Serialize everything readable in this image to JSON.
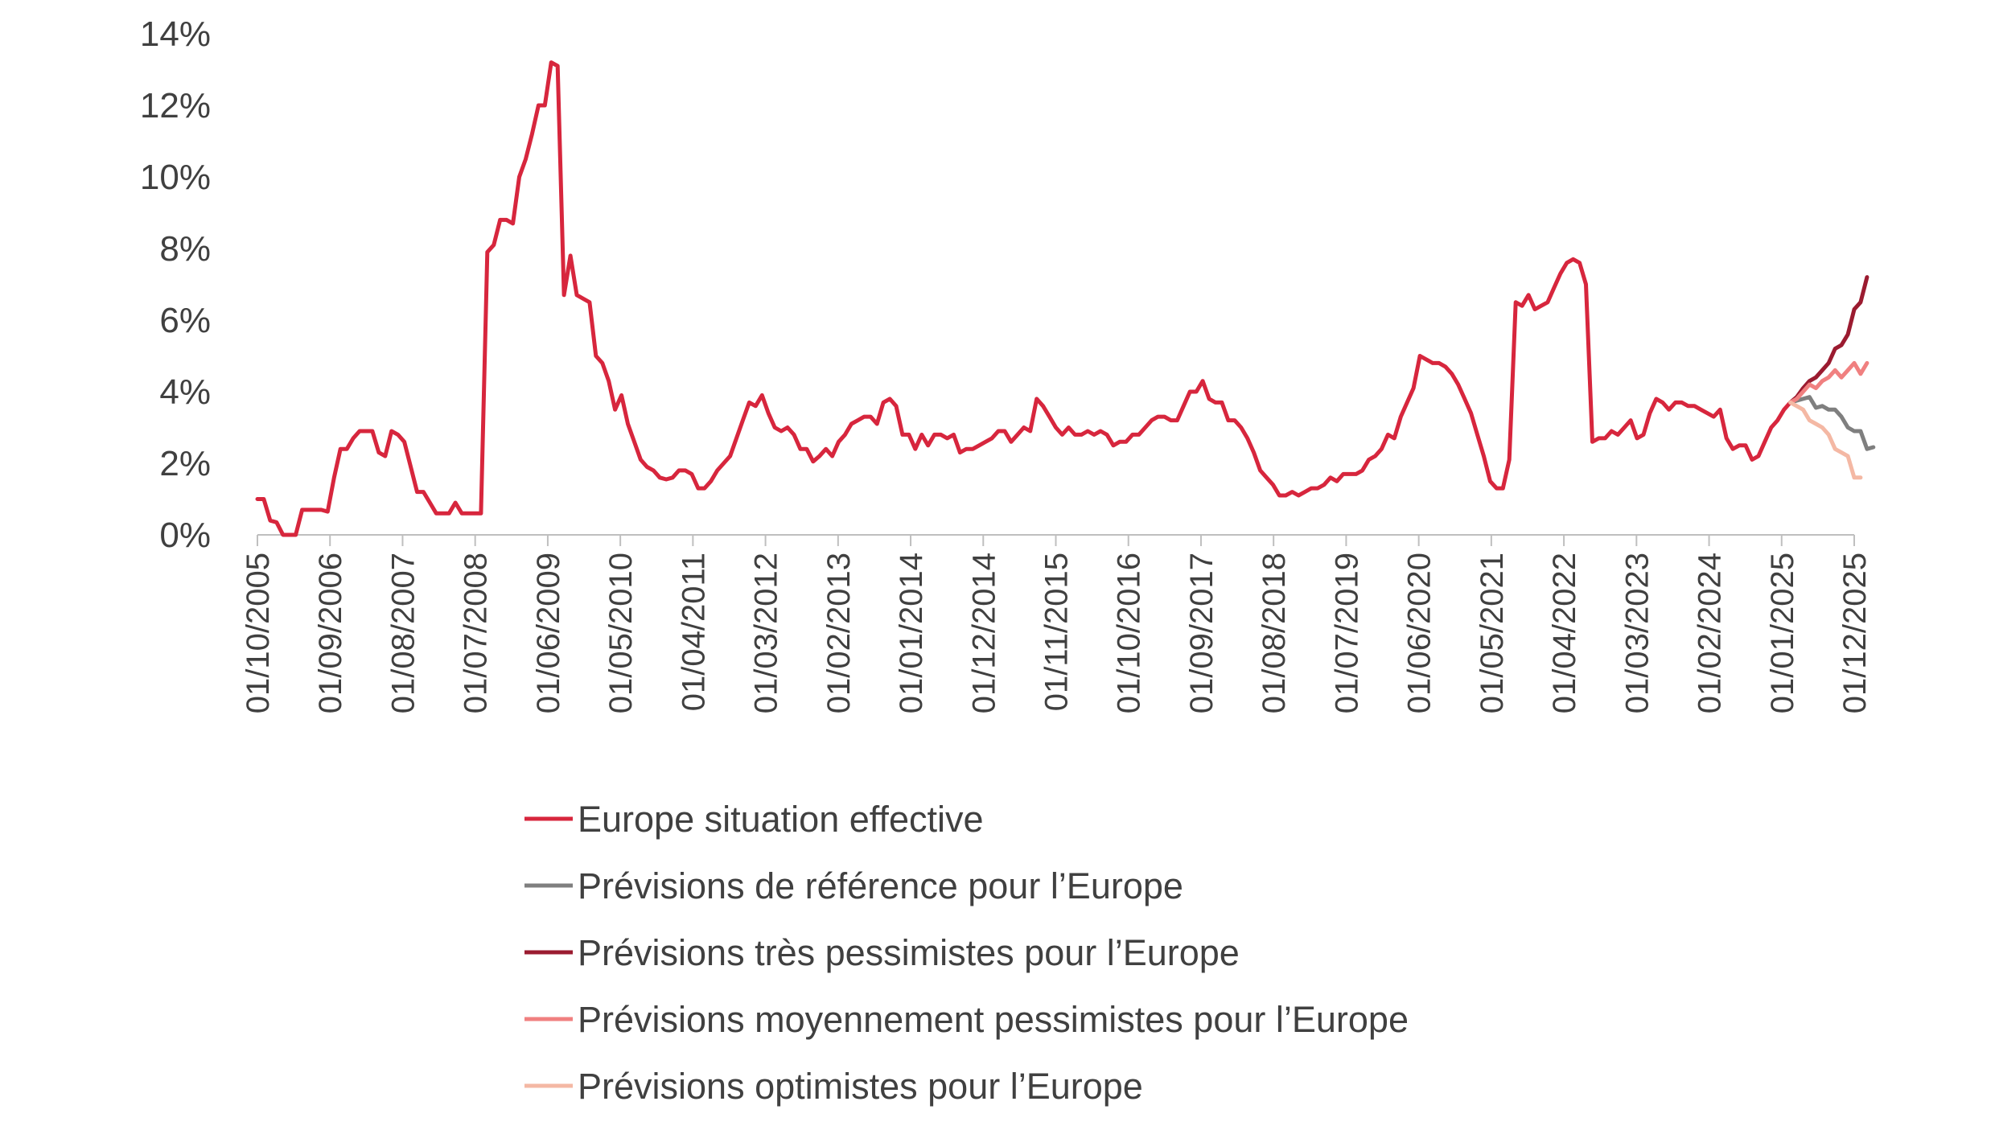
{
  "chart_data": {
    "type": "line",
    "title": "",
    "xlabel": "",
    "ylabel": "",
    "ylim": [
      0,
      14
    ],
    "y_ticks": [
      "0%",
      "2%",
      "4%",
      "6%",
      "8%",
      "10%",
      "12%",
      "14%"
    ],
    "x_ticks": [
      "01/10/2005",
      "01/09/2006",
      "01/08/2007",
      "01/07/2008",
      "01/06/2009",
      "01/05/2010",
      "01/04/2011",
      "01/03/2012",
      "01/02/2013",
      "01/01/2014",
      "01/12/2014",
      "01/11/2015",
      "01/10/2016",
      "01/09/2017",
      "01/08/2018",
      "01/07/2019",
      "01/06/2020",
      "01/05/2021",
      "01/04/2022",
      "01/03/2023",
      "01/02/2024",
      "01/01/2025",
      "01/12/2025"
    ],
    "x_range": [
      0,
      250
    ],
    "grid": false,
    "legend_position": "bottom",
    "series": [
      {
        "name": "Europe situation effective",
        "color": "#D7263D",
        "points": [
          [
            0,
            1.0
          ],
          [
            1,
            1.0
          ],
          [
            2,
            0.4
          ],
          [
            3,
            0.35
          ],
          [
            4,
            0.0
          ],
          [
            5,
            0.0
          ],
          [
            6,
            0.0
          ],
          [
            7,
            0.7
          ],
          [
            8,
            0.7
          ],
          [
            9,
            0.7
          ],
          [
            10,
            0.7
          ],
          [
            11,
            0.65
          ],
          [
            12,
            1.6
          ],
          [
            13,
            2.4
          ],
          [
            14,
            2.4
          ],
          [
            15,
            2.7
          ],
          [
            16,
            2.9
          ],
          [
            17,
            2.9
          ],
          [
            18,
            2.9
          ],
          [
            19,
            2.3
          ],
          [
            20,
            2.2
          ],
          [
            21,
            2.9
          ],
          [
            22,
            2.8
          ],
          [
            23,
            2.6
          ],
          [
            24,
            1.9
          ],
          [
            25,
            1.2
          ],
          [
            26,
            1.2
          ],
          [
            27,
            0.9
          ],
          [
            28,
            0.6
          ],
          [
            29,
            0.6
          ],
          [
            30,
            0.6
          ],
          [
            31,
            0.9
          ],
          [
            32,
            0.6
          ],
          [
            33,
            0.6
          ],
          [
            34,
            0.6
          ],
          [
            35,
            0.6
          ],
          [
            36,
            7.9
          ],
          [
            37,
            8.1
          ],
          [
            38,
            8.8
          ],
          [
            39,
            8.8
          ],
          [
            40,
            8.7
          ],
          [
            41,
            10.0
          ],
          [
            42,
            10.5
          ],
          [
            43,
            11.2
          ],
          [
            44,
            12.0
          ],
          [
            45,
            12.0
          ],
          [
            46,
            13.2
          ],
          [
            47,
            13.1
          ],
          [
            48,
            6.7
          ],
          [
            49,
            7.8
          ],
          [
            50,
            6.7
          ],
          [
            51,
            6.6
          ],
          [
            52,
            6.5
          ],
          [
            53,
            5.0
          ],
          [
            54,
            4.8
          ],
          [
            55,
            4.3
          ],
          [
            56,
            3.5
          ],
          [
            57,
            3.9
          ],
          [
            58,
            3.1
          ],
          [
            59,
            2.6
          ],
          [
            60,
            2.1
          ],
          [
            61,
            1.9
          ],
          [
            62,
            1.8
          ],
          [
            63,
            1.6
          ],
          [
            64,
            1.55
          ],
          [
            65,
            1.6
          ],
          [
            66,
            1.8
          ],
          [
            67,
            1.8
          ],
          [
            68,
            1.7
          ],
          [
            69,
            1.3
          ],
          [
            70,
            1.3
          ],
          [
            71,
            1.5
          ],
          [
            72,
            1.8
          ],
          [
            73,
            2.0
          ],
          [
            74,
            2.2
          ],
          [
            75,
            2.7
          ],
          [
            76,
            3.2
          ],
          [
            77,
            3.7
          ],
          [
            78,
            3.6
          ],
          [
            79,
            3.9
          ],
          [
            80,
            3.4
          ],
          [
            81,
            3.0
          ],
          [
            82,
            2.9
          ],
          [
            83,
            3.0
          ],
          [
            84,
            2.8
          ],
          [
            85,
            2.4
          ],
          [
            86,
            2.4
          ],
          [
            87,
            2.05
          ],
          [
            88,
            2.2
          ],
          [
            89,
            2.4
          ],
          [
            90,
            2.2
          ],
          [
            91,
            2.6
          ],
          [
            92,
            2.8
          ],
          [
            93,
            3.1
          ],
          [
            94,
            3.2
          ],
          [
            95,
            3.3
          ],
          [
            96,
            3.3
          ],
          [
            97,
            3.1
          ],
          [
            98,
            3.7
          ],
          [
            99,
            3.8
          ],
          [
            100,
            3.6
          ],
          [
            101,
            2.8
          ],
          [
            102,
            2.8
          ],
          [
            103,
            2.4
          ],
          [
            104,
            2.8
          ],
          [
            105,
            2.5
          ],
          [
            106,
            2.8
          ],
          [
            107,
            2.8
          ],
          [
            108,
            2.7
          ],
          [
            109,
            2.8
          ],
          [
            110,
            2.3
          ],
          [
            111,
            2.4
          ],
          [
            112,
            2.4
          ],
          [
            113,
            2.5
          ],
          [
            114,
            2.6
          ],
          [
            115,
            2.7
          ],
          [
            116,
            2.9
          ],
          [
            117,
            2.9
          ],
          [
            118,
            2.6
          ],
          [
            119,
            2.8
          ],
          [
            120,
            3.0
          ],
          [
            121,
            2.9
          ],
          [
            122,
            3.8
          ],
          [
            123,
            3.6
          ],
          [
            124,
            3.3
          ],
          [
            125,
            3.0
          ],
          [
            126,
            2.8
          ],
          [
            127,
            3.0
          ],
          [
            128,
            2.8
          ],
          [
            129,
            2.8
          ],
          [
            130,
            2.9
          ],
          [
            131,
            2.8
          ],
          [
            132,
            2.9
          ],
          [
            133,
            2.8
          ],
          [
            134,
            2.5
          ],
          [
            135,
            2.6
          ],
          [
            136,
            2.6
          ],
          [
            137,
            2.8
          ],
          [
            138,
            2.8
          ],
          [
            139,
            3.0
          ],
          [
            140,
            3.2
          ],
          [
            141,
            3.3
          ],
          [
            142,
            3.3
          ],
          [
            143,
            3.2
          ],
          [
            144,
            3.2
          ],
          [
            145,
            3.6
          ],
          [
            146,
            4.0
          ],
          [
            147,
            4.0
          ],
          [
            148,
            4.3
          ],
          [
            149,
            3.8
          ],
          [
            150,
            3.7
          ],
          [
            151,
            3.7
          ],
          [
            152,
            3.2
          ],
          [
            153,
            3.2
          ],
          [
            154,
            3.0
          ],
          [
            155,
            2.7
          ],
          [
            156,
            2.3
          ],
          [
            157,
            1.8
          ],
          [
            158,
            1.6
          ],
          [
            159,
            1.4
          ],
          [
            160,
            1.1
          ],
          [
            161,
            1.1
          ],
          [
            162,
            1.2
          ],
          [
            163,
            1.1
          ],
          [
            164,
            1.2
          ],
          [
            165,
            1.3
          ],
          [
            166,
            1.3
          ],
          [
            167,
            1.4
          ],
          [
            168,
            1.6
          ],
          [
            169,
            1.5
          ],
          [
            170,
            1.7
          ],
          [
            171,
            1.7
          ],
          [
            172,
            1.7
          ],
          [
            173,
            1.8
          ],
          [
            174,
            2.1
          ],
          [
            175,
            2.2
          ],
          [
            176,
            2.4
          ],
          [
            177,
            2.8
          ],
          [
            178,
            2.7
          ],
          [
            179,
            3.3
          ],
          [
            180,
            3.7
          ],
          [
            181,
            4.1
          ],
          [
            182,
            5.0
          ],
          [
            183,
            4.9
          ],
          [
            184,
            4.8
          ],
          [
            185,
            4.8
          ],
          [
            186,
            4.7
          ],
          [
            187,
            4.5
          ],
          [
            188,
            4.2
          ],
          [
            189,
            3.8
          ],
          [
            190,
            3.4
          ],
          [
            191,
            2.8
          ],
          [
            192,
            2.2
          ],
          [
            193,
            1.5
          ],
          [
            194,
            1.3
          ],
          [
            195,
            1.3
          ],
          [
            196,
            2.1
          ],
          [
            197,
            6.5
          ],
          [
            198,
            6.4
          ],
          [
            199,
            6.7
          ],
          [
            200,
            6.3
          ],
          [
            201,
            6.4
          ],
          [
            202,
            6.5
          ],
          [
            203,
            6.9
          ],
          [
            204,
            7.3
          ],
          [
            205,
            7.6
          ],
          [
            206,
            7.7
          ],
          [
            207,
            7.6
          ],
          [
            208,
            7.0
          ],
          [
            209,
            2.6
          ],
          [
            210,
            2.7
          ],
          [
            211,
            2.7
          ],
          [
            212,
            2.9
          ],
          [
            213,
            2.8
          ],
          [
            214,
            3.0
          ],
          [
            215,
            3.2
          ],
          [
            216,
            2.7
          ],
          [
            217,
            2.8
          ],
          [
            218,
            3.4
          ],
          [
            219,
            3.8
          ],
          [
            220,
            3.7
          ],
          [
            221,
            3.5
          ],
          [
            222,
            3.7
          ],
          [
            223,
            3.7
          ],
          [
            224,
            3.6
          ],
          [
            225,
            3.6
          ],
          [
            226,
            3.5
          ],
          [
            227,
            3.4
          ],
          [
            228,
            3.3
          ],
          [
            229,
            3.5
          ],
          [
            230,
            2.7
          ],
          [
            231,
            2.4
          ],
          [
            232,
            2.5
          ],
          [
            233,
            2.5
          ],
          [
            234,
            2.1
          ],
          [
            235,
            2.2
          ],
          [
            236,
            2.6
          ],
          [
            237,
            3.0
          ],
          [
            238,
            3.2
          ],
          [
            239,
            3.5
          ],
          [
            240,
            3.7
          ]
        ]
      },
      {
        "name": "Prévisions de référence pour l’Europe",
        "color": "#7F7F7F",
        "points": [
          [
            240,
            3.7
          ],
          [
            241,
            3.75
          ],
          [
            242,
            3.8
          ],
          [
            243,
            3.85
          ],
          [
            244,
            3.55
          ],
          [
            245,
            3.6
          ],
          [
            246,
            3.5
          ],
          [
            247,
            3.5
          ],
          [
            248,
            3.3
          ],
          [
            249,
            3.0
          ],
          [
            250,
            2.9
          ],
          [
            251,
            2.9
          ],
          [
            252,
            2.4
          ],
          [
            253,
            2.45
          ]
        ]
      },
      {
        "name": "Prévisions très pessimistes pour l’Europe",
        "color": "#9B1B30",
        "points": [
          [
            240,
            3.7
          ],
          [
            241,
            3.85
          ],
          [
            242,
            4.1
          ],
          [
            243,
            4.3
          ],
          [
            244,
            4.4
          ],
          [
            245,
            4.6
          ],
          [
            246,
            4.8
          ],
          [
            247,
            5.2
          ],
          [
            248,
            5.3
          ],
          [
            249,
            5.6
          ],
          [
            250,
            6.3
          ],
          [
            251,
            6.5
          ],
          [
            252,
            7.2
          ]
        ]
      },
      {
        "name": "Prévisions moyennement pessimistes pour l’Europe",
        "color": "#F08080",
        "points": [
          [
            240,
            3.7
          ],
          [
            241,
            3.8
          ],
          [
            242,
            4.0
          ],
          [
            243,
            4.2
          ],
          [
            244,
            4.1
          ],
          [
            245,
            4.3
          ],
          [
            246,
            4.4
          ],
          [
            247,
            4.6
          ],
          [
            248,
            4.4
          ],
          [
            249,
            4.6
          ],
          [
            250,
            4.8
          ],
          [
            251,
            4.5
          ],
          [
            252,
            4.8
          ]
        ]
      },
      {
        "name": "Prévisions optimistes pour l’Europe",
        "color": "#F4B8A4",
        "points": [
          [
            240,
            3.7
          ],
          [
            241,
            3.6
          ],
          [
            242,
            3.5
          ],
          [
            243,
            3.2
          ],
          [
            244,
            3.1
          ],
          [
            245,
            3.0
          ],
          [
            246,
            2.8
          ],
          [
            247,
            2.4
          ],
          [
            248,
            2.3
          ],
          [
            249,
            2.2
          ],
          [
            250,
            1.6
          ],
          [
            251,
            1.6
          ]
        ]
      }
    ]
  }
}
